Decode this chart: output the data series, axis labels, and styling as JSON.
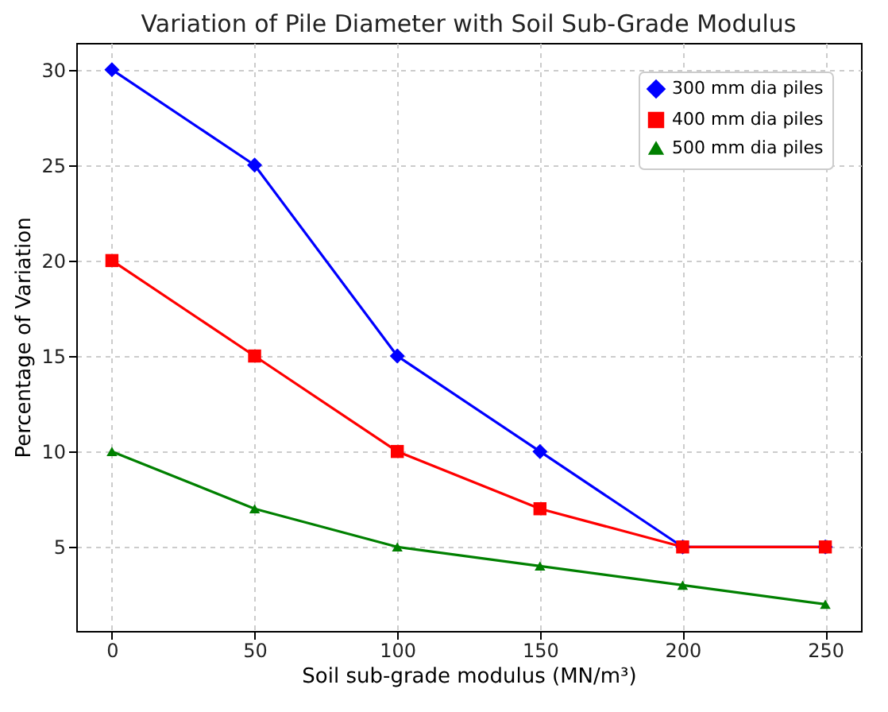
{
  "chart_data": {
    "type": "line",
    "title": "Variation of Pile Diameter with Soil Sub-Grade Modulus",
    "xlabel": "Soil sub-grade modulus (MN/m³)",
    "ylabel": "Percentage of Variation",
    "x": [
      0,
      50,
      100,
      150,
      200,
      250
    ],
    "series": [
      {
        "name": "300 mm dia piles",
        "color": "#0000ff",
        "marker": "diamond",
        "values": [
          30,
          25,
          15,
          10,
          5,
          5
        ]
      },
      {
        "name": "400 mm dia piles",
        "color": "#ff0000",
        "marker": "square",
        "values": [
          20,
          15,
          10,
          7,
          5,
          5
        ]
      },
      {
        "name": "500 mm dia piles",
        "color": "#008000",
        "marker": "triangle",
        "values": [
          10,
          7,
          5,
          4,
          3,
          2
        ]
      }
    ],
    "xlim": [
      -12.5,
      262.5
    ],
    "xticks": [
      0,
      50,
      100,
      150,
      200,
      250
    ],
    "ylim": [
      0.6,
      31.4
    ],
    "yticks": [
      5,
      10,
      15,
      20,
      25,
      30
    ],
    "grid": true,
    "legend": "top right",
    "line_style": "solid"
  }
}
